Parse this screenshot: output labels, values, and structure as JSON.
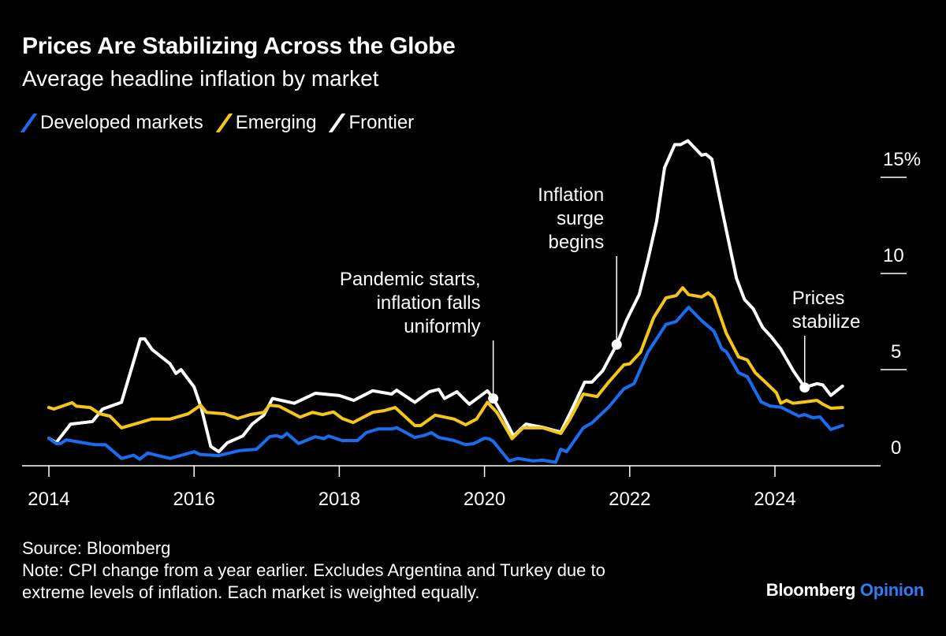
{
  "header": {
    "title": "Prices Are Stabilizing Across the Globe",
    "subtitle": "Average headline inflation by market"
  },
  "legend": [
    {
      "label": "Developed markets",
      "color": "#1a6cf0"
    },
    {
      "label": "Emerging",
      "color": "#f5c518"
    },
    {
      "label": "Frontier",
      "color": "#ffffff"
    }
  ],
  "chart_data": {
    "type": "line",
    "title": "Prices Are Stabilizing Across the Globe",
    "subtitle": "Average headline inflation by market",
    "xlim": [
      2014,
      2025.5
    ],
    "ylim": [
      0,
      17
    ],
    "x_ticks": [
      "2014",
      "2016",
      "2018",
      "2020",
      "2022",
      "2024"
    ],
    "x_tick_values": [
      2014,
      2016,
      2018,
      2020,
      2022,
      2024
    ],
    "y_ticks": [
      "0",
      "5",
      "10",
      "15%"
    ],
    "y_tick_values": [
      0,
      5,
      10,
      15
    ],
    "y_axis_side": "right",
    "grid": false,
    "legend_placement": "top-left",
    "series": [
      {
        "name": "Developed markets",
        "color": "#1a6cf0",
        "points": [
          [
            2014.0,
            1.43
          ],
          [
            2014.1,
            1.15
          ],
          [
            2014.16,
            1.15
          ],
          [
            2014.24,
            1.35
          ],
          [
            2014.42,
            1.23
          ],
          [
            2014.63,
            1.1
          ],
          [
            2014.78,
            1.1
          ],
          [
            2015.0,
            0.38
          ],
          [
            2015.17,
            0.55
          ],
          [
            2015.25,
            0.34
          ],
          [
            2015.36,
            0.66
          ],
          [
            2015.67,
            0.38
          ],
          [
            2016.0,
            0.73
          ],
          [
            2016.08,
            0.59
          ],
          [
            2016.34,
            0.53
          ],
          [
            2016.63,
            0.79
          ],
          [
            2016.86,
            0.86
          ],
          [
            2017.04,
            1.51
          ],
          [
            2017.13,
            1.57
          ],
          [
            2017.21,
            1.47
          ],
          [
            2017.28,
            1.68
          ],
          [
            2017.44,
            1.16
          ],
          [
            2017.67,
            1.51
          ],
          [
            2017.79,
            1.41
          ],
          [
            2017.85,
            1.55
          ],
          [
            2018.04,
            1.31
          ],
          [
            2018.25,
            1.31
          ],
          [
            2018.37,
            1.72
          ],
          [
            2018.54,
            1.92
          ],
          [
            2018.73,
            1.92
          ],
          [
            2018.79,
            1.98
          ],
          [
            2019.04,
            1.47
          ],
          [
            2019.16,
            1.57
          ],
          [
            2019.27,
            1.72
          ],
          [
            2019.37,
            1.47
          ],
          [
            2019.58,
            1.31
          ],
          [
            2019.74,
            1.1
          ],
          [
            2019.85,
            1.15
          ],
          [
            2020.0,
            1.43
          ],
          [
            2020.06,
            1.41
          ],
          [
            2020.12,
            1.27
          ],
          [
            2020.34,
            0.25
          ],
          [
            2020.46,
            0.38
          ],
          [
            2020.67,
            0.25
          ],
          [
            2020.8,
            0.29
          ],
          [
            2020.98,
            0.18
          ],
          [
            2021.05,
            0.86
          ],
          [
            2021.13,
            0.73
          ],
          [
            2021.36,
            1.97
          ],
          [
            2021.48,
            2.23
          ],
          [
            2021.71,
            3.05
          ],
          [
            2021.92,
            4.0
          ],
          [
            2022.06,
            4.27
          ],
          [
            2022.25,
            5.9
          ],
          [
            2022.37,
            6.6
          ],
          [
            2022.5,
            7.35
          ],
          [
            2022.64,
            7.5
          ],
          [
            2022.81,
            8.24
          ],
          [
            2022.99,
            7.55
          ],
          [
            2023.16,
            7.0
          ],
          [
            2023.27,
            6.07
          ],
          [
            2023.33,
            5.94
          ],
          [
            2023.5,
            4.84
          ],
          [
            2023.62,
            4.63
          ],
          [
            2023.81,
            3.32
          ],
          [
            2023.93,
            3.11
          ],
          [
            2024.08,
            3.05
          ],
          [
            2024.33,
            2.58
          ],
          [
            2024.41,
            2.66
          ],
          [
            2024.52,
            2.5
          ],
          [
            2024.62,
            2.54
          ],
          [
            2024.77,
            1.89
          ],
          [
            2024.93,
            2.09
          ]
        ]
      },
      {
        "name": "Emerging",
        "color": "#f5c518",
        "points": [
          [
            2014.0,
            3.03
          ],
          [
            2014.07,
            2.95
          ],
          [
            2014.32,
            3.28
          ],
          [
            2014.38,
            3.1
          ],
          [
            2014.57,
            3.03
          ],
          [
            2014.7,
            2.7
          ],
          [
            2014.84,
            2.58
          ],
          [
            2015.0,
            1.97
          ],
          [
            2015.42,
            2.43
          ],
          [
            2015.67,
            2.43
          ],
          [
            2015.92,
            2.7
          ],
          [
            2016.09,
            3.15
          ],
          [
            2016.17,
            2.78
          ],
          [
            2016.42,
            2.7
          ],
          [
            2016.6,
            2.46
          ],
          [
            2016.77,
            2.66
          ],
          [
            2016.96,
            2.78
          ],
          [
            2017.04,
            3.15
          ],
          [
            2017.17,
            3.1
          ],
          [
            2017.46,
            2.53
          ],
          [
            2017.63,
            2.78
          ],
          [
            2017.77,
            2.66
          ],
          [
            2017.92,
            2.8
          ],
          [
            2018.04,
            2.46
          ],
          [
            2018.19,
            2.25
          ],
          [
            2018.46,
            2.78
          ],
          [
            2018.62,
            2.87
          ],
          [
            2018.77,
            3.03
          ],
          [
            2019.04,
            2.09
          ],
          [
            2019.12,
            2.09
          ],
          [
            2019.32,
            2.63
          ],
          [
            2019.58,
            2.43
          ],
          [
            2019.74,
            2.13
          ],
          [
            2019.89,
            2.43
          ],
          [
            2020.04,
            3.3
          ],
          [
            2020.17,
            2.78
          ],
          [
            2020.38,
            1.41
          ],
          [
            2020.53,
            1.97
          ],
          [
            2020.8,
            1.97
          ],
          [
            2021.05,
            1.68
          ],
          [
            2021.17,
            2.38
          ],
          [
            2021.36,
            3.73
          ],
          [
            2021.55,
            3.6
          ],
          [
            2021.71,
            4.35
          ],
          [
            2021.92,
            5.25
          ],
          [
            2022.0,
            5.3
          ],
          [
            2022.15,
            5.91
          ],
          [
            2022.33,
            7.7
          ],
          [
            2022.5,
            8.73
          ],
          [
            2022.64,
            8.85
          ],
          [
            2022.73,
            9.26
          ],
          [
            2022.81,
            8.9
          ],
          [
            2022.99,
            8.78
          ],
          [
            2023.08,
            8.99
          ],
          [
            2023.16,
            8.73
          ],
          [
            2023.33,
            6.89
          ],
          [
            2023.5,
            5.66
          ],
          [
            2023.62,
            5.5
          ],
          [
            2023.73,
            4.84
          ],
          [
            2023.89,
            4.27
          ],
          [
            2024.02,
            3.8
          ],
          [
            2024.08,
            3.25
          ],
          [
            2024.16,
            3.4
          ],
          [
            2024.25,
            3.25
          ],
          [
            2024.41,
            3.32
          ],
          [
            2024.58,
            3.4
          ],
          [
            2024.66,
            3.2
          ],
          [
            2024.77,
            2.99
          ],
          [
            2024.93,
            3.03
          ]
        ]
      },
      {
        "name": "Frontier",
        "color": "#ffffff",
        "points": [
          [
            2014.0,
            1.43
          ],
          [
            2014.1,
            1.2
          ],
          [
            2014.3,
            2.17
          ],
          [
            2014.6,
            2.3
          ],
          [
            2014.74,
            2.95
          ],
          [
            2015.0,
            3.3
          ],
          [
            2015.26,
            6.6
          ],
          [
            2015.32,
            6.6
          ],
          [
            2015.42,
            6.05
          ],
          [
            2015.67,
            5.3
          ],
          [
            2015.75,
            4.8
          ],
          [
            2015.82,
            5.0
          ],
          [
            2016.0,
            4.1
          ],
          [
            2016.1,
            3.0
          ],
          [
            2016.23,
            1.0
          ],
          [
            2016.34,
            0.73
          ],
          [
            2016.46,
            1.2
          ],
          [
            2016.67,
            1.55
          ],
          [
            2016.8,
            2.17
          ],
          [
            2016.96,
            2.63
          ],
          [
            2017.08,
            3.5
          ],
          [
            2017.38,
            3.25
          ],
          [
            2017.67,
            3.77
          ],
          [
            2018.0,
            3.65
          ],
          [
            2018.2,
            3.4
          ],
          [
            2018.46,
            3.9
          ],
          [
            2018.72,
            3.73
          ],
          [
            2018.79,
            3.93
          ],
          [
            2019.04,
            3.3
          ],
          [
            2019.24,
            3.85
          ],
          [
            2019.37,
            3.97
          ],
          [
            2019.45,
            3.5
          ],
          [
            2019.62,
            3.85
          ],
          [
            2019.79,
            3.2
          ],
          [
            2020.04,
            3.9
          ],
          [
            2020.12,
            3.5
          ],
          [
            2020.27,
            2.5
          ],
          [
            2020.4,
            1.55
          ],
          [
            2020.57,
            2.17
          ],
          [
            2020.8,
            2.0
          ],
          [
            2021.05,
            1.75
          ],
          [
            2021.2,
            2.9
          ],
          [
            2021.38,
            4.35
          ],
          [
            2021.48,
            4.35
          ],
          [
            2021.63,
            4.95
          ],
          [
            2021.82,
            6.3
          ],
          [
            2021.96,
            7.6
          ],
          [
            2022.13,
            8.9
          ],
          [
            2022.25,
            10.7
          ],
          [
            2022.37,
            12.7
          ],
          [
            2022.48,
            15.5
          ],
          [
            2022.62,
            16.7
          ],
          [
            2022.7,
            16.7
          ],
          [
            2022.8,
            16.9
          ],
          [
            2022.99,
            16.15
          ],
          [
            2023.05,
            16.2
          ],
          [
            2023.13,
            15.95
          ],
          [
            2023.28,
            13.15
          ],
          [
            2023.47,
            9.75
          ],
          [
            2023.58,
            8.65
          ],
          [
            2023.7,
            8.17
          ],
          [
            2023.83,
            7.2
          ],
          [
            2023.95,
            6.7
          ],
          [
            2024.08,
            6.07
          ],
          [
            2024.25,
            4.96
          ],
          [
            2024.41,
            4.07
          ],
          [
            2024.58,
            4.27
          ],
          [
            2024.66,
            4.2
          ],
          [
            2024.77,
            3.66
          ],
          [
            2024.93,
            4.14
          ]
        ]
      }
    ],
    "annotations": [
      {
        "lines": [
          "Pandemic starts,",
          "inflation falls",
          "uniformly"
        ],
        "x": 2020.12,
        "y": 3.5,
        "series": "Frontier"
      },
      {
        "lines": [
          "Inflation",
          "surge",
          "begins"
        ],
        "x": 2021.82,
        "y": 6.3,
        "series": "Frontier"
      },
      {
        "lines": [
          "Prices",
          "stabilize"
        ],
        "x": 2024.41,
        "y": 4.07,
        "series": "Frontier"
      }
    ]
  },
  "footer": {
    "source": "Source: Bloomberg",
    "note_line1": "Note: CPI change from a year earlier. Excludes Argentina and Turkey due to",
    "note_line2": "extreme levels of inflation. Each market is weighted equally."
  },
  "logo": {
    "brand": "Bloomberg",
    "section": "Opinion"
  }
}
